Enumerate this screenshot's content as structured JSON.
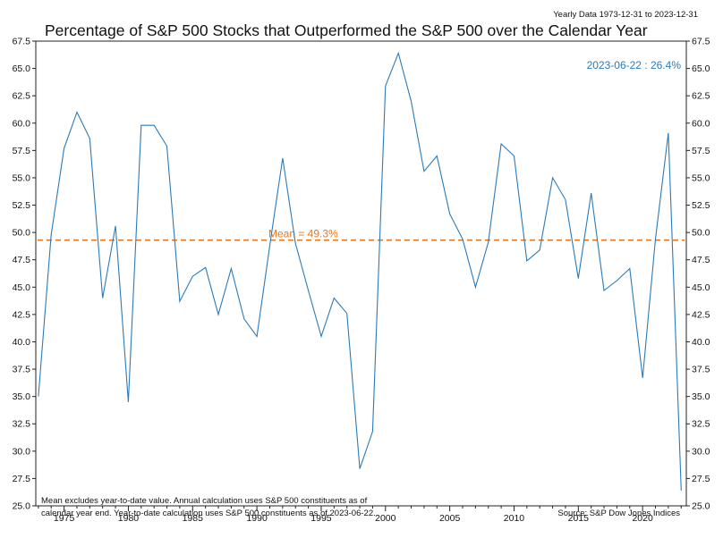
{
  "chart_data": {
    "type": "line",
    "title": "Percentage of S&P 500 Stocks that Outperformed the S&P 500 over the Calendar Year",
    "subtitle": "Yearly Data 1973-12-31 to 2023-12-31",
    "xlabel": "",
    "ylabel": "",
    "x_ticks": [
      1975,
      1980,
      1985,
      1990,
      1995,
      2000,
      2005,
      2010,
      2015,
      2020
    ],
    "xlim": [
      1972.8,
      2023.4
    ],
    "ylim": [
      25.0,
      67.5
    ],
    "y_ticks": [
      "25.0",
      "27.5",
      "30.0",
      "32.5",
      "35.0",
      "37.5",
      "40.0",
      "42.5",
      "45.0",
      "47.5",
      "50.0",
      "52.5",
      "55.0",
      "57.5",
      "60.0",
      "62.5",
      "65.0",
      "67.5"
    ],
    "grid": false,
    "series": [
      {
        "color": "#2b7bb9",
        "x": [
          1973,
          1974,
          1975,
          1976,
          1977,
          1978,
          1979,
          1980,
          1981,
          1982,
          1983,
          1984,
          1985,
          1986,
          1987,
          1988,
          1989,
          1990,
          1991,
          1992,
          1993,
          1994,
          1995,
          1996,
          1997,
          1998,
          1999,
          2000,
          2001,
          2002,
          2003,
          2004,
          2005,
          2006,
          2007,
          2008,
          2009,
          2010,
          2011,
          2012,
          2013,
          2014,
          2015,
          2016,
          2017,
          2018,
          2019,
          2020,
          2021,
          2022,
          2023
        ],
        "y": [
          35.0,
          49.8,
          57.7,
          61.0,
          58.6,
          44.0,
          50.6,
          34.5,
          59.8,
          59.8,
          57.9,
          43.7,
          46.0,
          46.8,
          42.5,
          46.7,
          42.1,
          40.5,
          48.8,
          56.8,
          49.0,
          44.7,
          40.5,
          44.0,
          42.6,
          28.4,
          31.8,
          63.4,
          66.4,
          62.0,
          55.6,
          57.0,
          51.7,
          49.4,
          45.0,
          49.1,
          58.1,
          57.0,
          47.4,
          48.4,
          55.0,
          53.0,
          45.8,
          53.6,
          44.7,
          45.6,
          46.7,
          36.7,
          49.4,
          59.1,
          26.4
        ]
      }
    ],
    "mean": {
      "value": 49.3,
      "label": "Mean = 49.3%",
      "color": "#e4771f"
    },
    "callout": "2023-06-22 : 26.4%",
    "note_lines": [
      "Mean excludes year-to-date value. Annual calculation uses S&P 500 constituents as of",
      "calendar year end. Year-to-date calculation uses S&P 500 constituents as of 2023-06-22."
    ],
    "source": "Source:   S&P Dow Jones Indices"
  }
}
